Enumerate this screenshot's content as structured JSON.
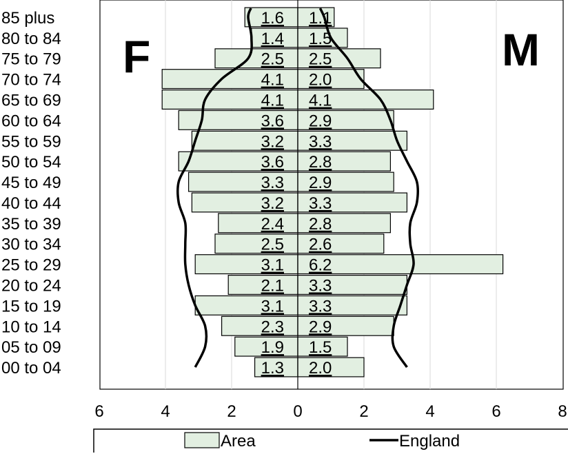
{
  "chart_data": {
    "type": "bar",
    "orientation": "horizontal",
    "layout": "population-pyramid",
    "categories": [
      "00 to 04",
      "05 to 09",
      "10 to 14",
      "15 to 19",
      "20 to 24",
      "25 to 29",
      "30 to 34",
      "35 to 39",
      "40 to 44",
      "45 to 49",
      "50 to 54",
      "55 to 59",
      "60 to 64",
      "65 to 69",
      "70 to 74",
      "75 to 79",
      "80 to 84",
      "85 plus"
    ],
    "series": [
      {
        "name": "Area",
        "side": "F",
        "type": "bar",
        "values": [
          1.3,
          1.9,
          2.3,
          3.1,
          2.1,
          3.1,
          2.5,
          2.4,
          3.2,
          3.3,
          3.6,
          3.2,
          3.6,
          4.1,
          4.1,
          2.5,
          1.4,
          1.6
        ]
      },
      {
        "name": "Area",
        "side": "M",
        "type": "bar",
        "values": [
          2.0,
          1.5,
          2.9,
          3.3,
          3.3,
          6.2,
          2.6,
          2.8,
          3.3,
          2.9,
          2.8,
          3.3,
          2.9,
          4.1,
          2.0,
          2.5,
          1.5,
          1.1
        ]
      },
      {
        "name": "England",
        "side": "F",
        "type": "line",
        "values": [
          3.1,
          2.8,
          2.8,
          3.1,
          3.3,
          3.4,
          3.4,
          3.4,
          3.6,
          3.6,
          3.3,
          3.1,
          2.9,
          2.8,
          2.3,
          1.5,
          1.4,
          1.5
        ]
      },
      {
        "name": "England",
        "side": "M",
        "type": "line",
        "values": [
          3.3,
          2.9,
          2.9,
          3.1,
          3.3,
          3.5,
          3.4,
          3.4,
          3.6,
          3.6,
          3.3,
          3.0,
          2.8,
          2.5,
          1.9,
          1.5,
          1.0,
          0.8
        ]
      }
    ],
    "side_labels": {
      "left": "F",
      "right": "M"
    },
    "x_ticks": [
      "6",
      "4",
      "2",
      "0",
      "2",
      "4",
      "6",
      "8"
    ],
    "xlim": [
      -6,
      8
    ],
    "grid": true,
    "legend": {
      "position": "bottom",
      "entries": [
        "Area",
        "England"
      ]
    },
    "colors": {
      "bar_fill": "#e2efe1",
      "bar_stroke": "#000000",
      "line": "#000000",
      "grid": "#d9d9d9"
    }
  }
}
